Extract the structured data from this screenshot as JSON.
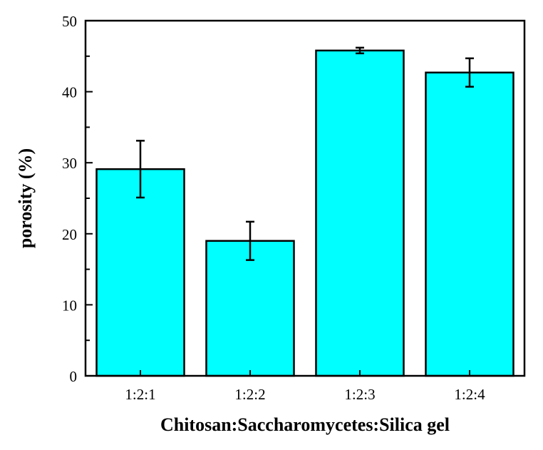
{
  "chart_data": {
    "type": "bar",
    "title": "",
    "xlabel": "Chitosan:Saccharomycetes:Silica gel",
    "ylabel": "porosity (%)",
    "categories": [
      "1:2:1",
      "1:2:2",
      "1:2:3",
      "1:2:4"
    ],
    "values": [
      29.1,
      19.0,
      45.8,
      42.7
    ],
    "errors": [
      4.0,
      2.7,
      0.4,
      2.0
    ],
    "ylim": [
      0,
      50
    ],
    "yticks": [
      "0",
      "10",
      "20",
      "30",
      "40",
      "50"
    ],
    "grid": false,
    "legend": null,
    "bar_color": "#00FFFF",
    "edge_color": "#000000"
  }
}
